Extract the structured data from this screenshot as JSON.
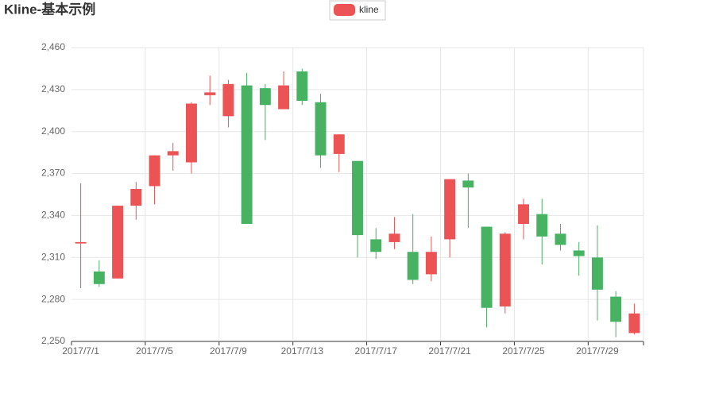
{
  "chart_data": {
    "type": "candlestick",
    "title": "Kline-基本示例",
    "categories": [
      "2017/7/1",
      null,
      null,
      null,
      "2017/7/5",
      null,
      null,
      null,
      "2017/7/9",
      null,
      null,
      null,
      "2017/7/13",
      null,
      null,
      null,
      "2017/7/17",
      null,
      null,
      null,
      "2017/7/21",
      null,
      null,
      null,
      "2017/7/25",
      null,
      null,
      null,
      "2017/7/29",
      null,
      null
    ],
    "series": [
      {
        "name": "kline",
        "up_color": "#ec5354",
        "down_color": "#47b262",
        "open": [
          2320,
          2300,
          2295,
          2347,
          2361,
          2383,
          2378,
          2426,
          2411,
          2433,
          2431,
          2416,
          2443,
          2421,
          2384,
          2379,
          2323,
          2321,
          2314,
          2298,
          2323,
          2365,
          2332,
          2275,
          2334,
          2341,
          2327,
          2315,
          2310,
          2282,
          2256
        ],
        "close": [
          2321,
          2291,
          2347,
          2359,
          2383,
          2386,
          2420,
          2428,
          2434,
          2334,
          2419,
          2433,
          2422,
          2383,
          2398,
          2326,
          2314,
          2327,
          2294,
          2314,
          2366,
          2360,
          2274,
          2327,
          2348,
          2325,
          2319,
          2311,
          2287,
          2264,
          2270
        ],
        "low": [
          2288,
          2289,
          2295,
          2337,
          2348,
          2372,
          2370,
          2419,
          2403,
          2334,
          2394,
          2416,
          2419,
          2374,
          2371,
          2310,
          2309,
          2316,
          2291,
          2293,
          2310,
          2331,
          2260,
          2270,
          2323,
          2305,
          2315,
          2297,
          2265,
          2253,
          2255
        ],
        "high": [
          2363,
          2308,
          2347,
          2364,
          2383,
          2392,
          2421,
          2440,
          2437,
          2442,
          2434,
          2443,
          2445,
          2427,
          2398,
          2379,
          2331,
          2339,
          2341,
          2325,
          2366,
          2370,
          2332,
          2328,
          2352,
          2352,
          2334,
          2321,
          2333,
          2286,
          2277
        ]
      }
    ],
    "ylim": [
      2250,
      2460
    ],
    "yticks": [
      {
        "value": 2250,
        "label": "2,250"
      },
      {
        "value": 2280,
        "label": "2,280"
      },
      {
        "value": 2310,
        "label": "2,310"
      },
      {
        "value": 2340,
        "label": "2,340"
      },
      {
        "value": 2370,
        "label": "2,370"
      },
      {
        "value": 2400,
        "label": "2,400"
      },
      {
        "value": 2430,
        "label": "2,430"
      },
      {
        "value": 2460,
        "label": "2,460"
      }
    ],
    "grid": true,
    "legend_position": "top"
  }
}
